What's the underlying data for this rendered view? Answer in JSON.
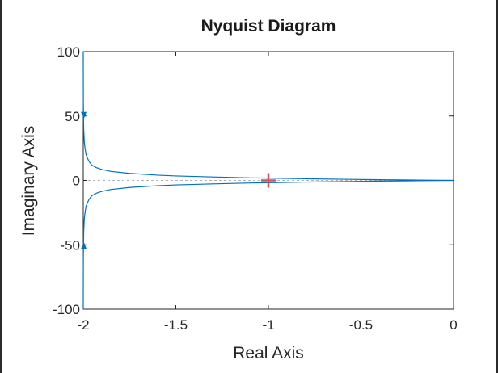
{
  "chart_data": {
    "type": "line",
    "title": "Nyquist Diagram",
    "xlabel": "Real Axis",
    "ylabel": "Imaginary Axis",
    "xlim": [
      -2,
      0
    ],
    "ylim": [
      -100,
      100
    ],
    "xticks": [
      -2,
      -1.5,
      -1,
      -0.5,
      0
    ],
    "xtick_labels": [
      "-2",
      "-1.5",
      "-1",
      "-0.5",
      "0"
    ],
    "yticks": [
      100,
      50,
      0,
      -50,
      -100
    ],
    "ytick_labels": [
      "100",
      "50",
      "0",
      "-50",
      "-100"
    ],
    "grid": false,
    "zero_line": true,
    "critical_point": [
      -1,
      0
    ],
    "series": [
      {
        "color": "#0072BD",
        "x": [
          -2,
          -1.9995,
          -1.9976,
          -1.9945,
          -1.9905,
          -1.985,
          -1.97,
          -1.955,
          -1.93,
          -1.9,
          -1.85,
          -1.75,
          -1.6,
          -1.5,
          -1.3,
          -1.1,
          -1,
          -0.8,
          -0.6,
          -0.4,
          -0.2,
          0
        ],
        "y": [
          100,
          60,
          40,
          30,
          25,
          20,
          15,
          12,
          10,
          8.5,
          7,
          5.5,
          4.1,
          3.5,
          2.7,
          2.0,
          1.8,
          1.3,
          0.9,
          0.55,
          0.25,
          0
        ]
      },
      {
        "color": "#0072BD",
        "x": [
          -2,
          -1.9995,
          -1.9976,
          -1.9945,
          -1.9905,
          -1.985,
          -1.97,
          -1.955,
          -1.93,
          -1.9,
          -1.85,
          -1.75,
          -1.6,
          -1.5,
          -1.3,
          -1.1,
          -1,
          -0.8,
          -0.6,
          -0.4,
          -0.2,
          0
        ],
        "y": [
          -100,
          -60,
          -40,
          -30,
          -25,
          -20,
          -15,
          -12,
          -10,
          -8.5,
          -7,
          -5.5,
          -4.1,
          -3.5,
          -2.7,
          -2.0,
          -1.8,
          -1.3,
          -0.9,
          -0.55,
          -0.25,
          0
        ]
      }
    ],
    "arrows": [
      {
        "x": -2,
        "y": 50,
        "direction": "down"
      },
      {
        "x": -2,
        "y": -50,
        "direction": "up"
      }
    ],
    "colors": {
      "curve": "#0072BD",
      "critical_point": "#D9534F",
      "zero_line": "#9a9a9a",
      "axes": "#262626"
    }
  }
}
